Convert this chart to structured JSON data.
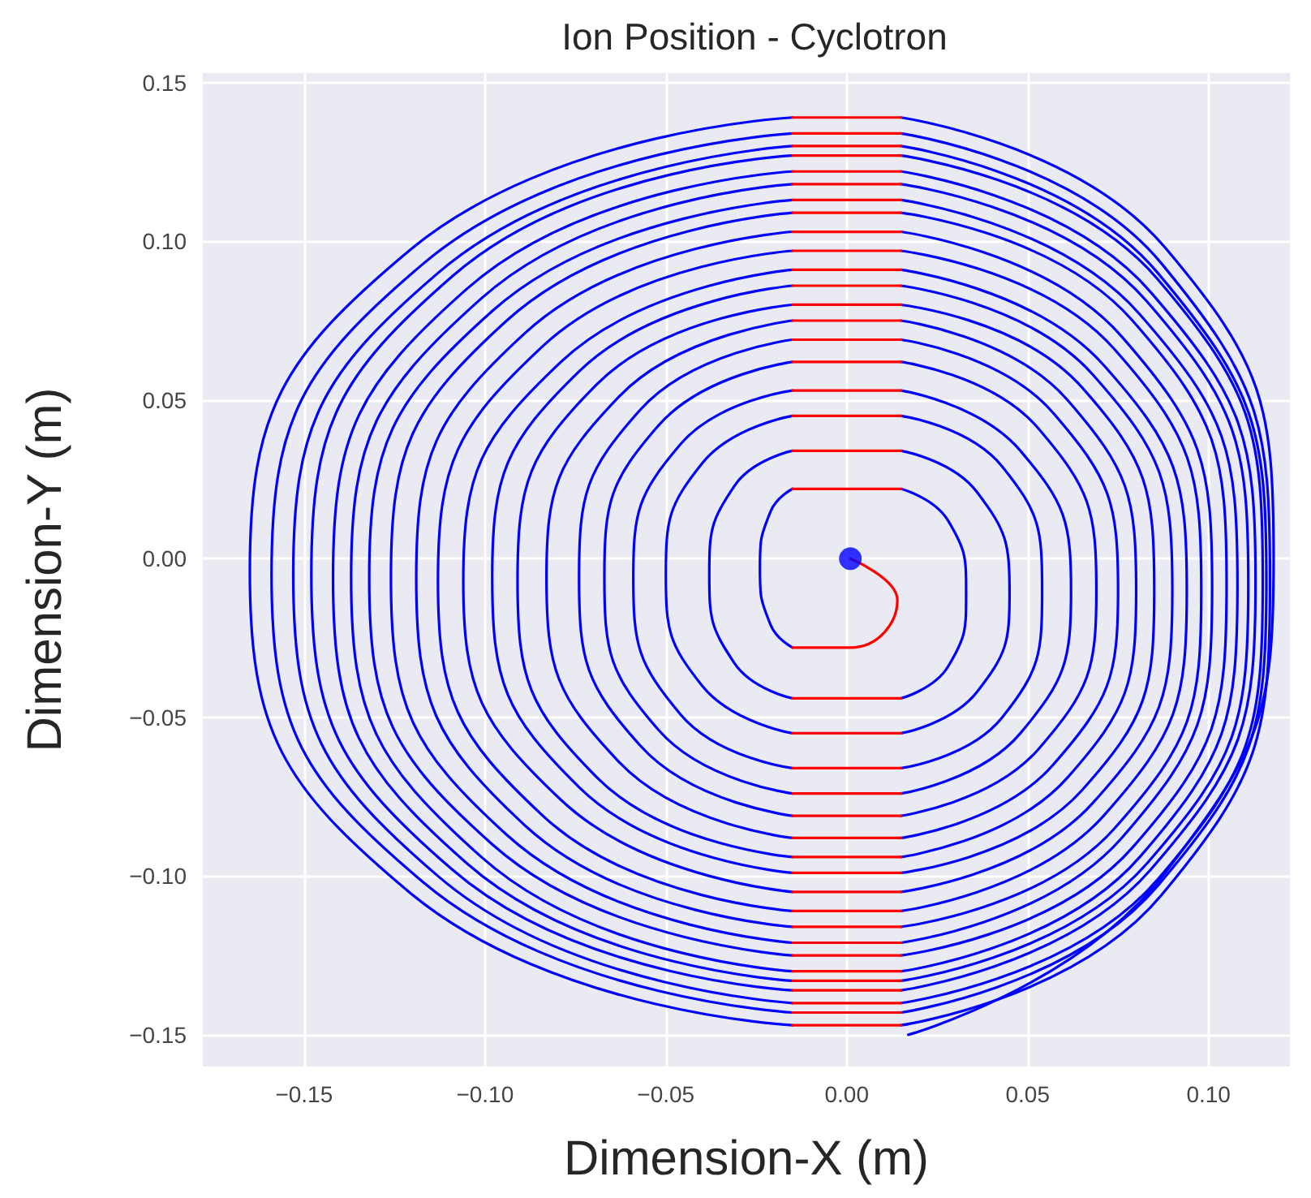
{
  "chart_data": {
    "type": "line",
    "title": "Ion Position - Cyclotron",
    "xlabel": "Dimension-X (m)",
    "ylabel": "Dimension-Y (m)",
    "xlim": [
      -0.178,
      0.1225
    ],
    "ylim": [
      -0.16,
      0.153
    ],
    "xticks": [
      {
        "value": -0.15,
        "label": "−0.15"
      },
      {
        "value": -0.1,
        "label": "−0.10"
      },
      {
        "value": -0.05,
        "label": "−0.05"
      },
      {
        "value": 0,
        "label": "0.00"
      },
      {
        "value": 0.05,
        "label": "0.05"
      },
      {
        "value": 0.1,
        "label": "0.10"
      }
    ],
    "yticks": [
      {
        "value": -0.15,
        "label": "−0.15"
      },
      {
        "value": -0.1,
        "label": "−0.10"
      },
      {
        "value": -0.05,
        "label": "−0.05"
      },
      {
        "value": 0,
        "label": "0.00"
      },
      {
        "value": 0.05,
        "label": "0.05"
      },
      {
        "value": 0.1,
        "label": "0.10"
      },
      {
        "value": 0.15,
        "label": "0.15"
      }
    ],
    "grid": true,
    "marker": "none",
    "series": [
      {
        "color": "#0000ff",
        "x": [
          -0.015,
          -0.021,
          -0.024,
          -0.021,
          -0.015
        ],
        "values": [
          -0.028,
          -0.021,
          -0.003,
          0.015,
          0.022
        ]
      },
      {
        "color": "#0000ff",
        "x": [
          0.015,
          0.028,
          0.033,
          0.028,
          0.015
        ],
        "values": [
          0.022,
          0.012,
          -0.011,
          -0.034,
          -0.044
        ]
      },
      {
        "color": "#0000ff",
        "x": [
          -0.015,
          -0.031,
          -0.038,
          -0.031,
          -0.015
        ],
        "values": [
          -0.044,
          -0.033,
          -0.005,
          0.023,
          0.034
        ]
      },
      {
        "color": "#0000ff",
        "x": [
          0.015,
          0.036,
          0.045,
          0.036,
          0.015
        ],
        "values": [
          0.034,
          0.021,
          -0.011,
          -0.042,
          -0.055
        ]
      },
      {
        "color": "#0000ff",
        "x": [
          -0.015,
          -0.04,
          -0.05,
          -0.04,
          -0.015
        ],
        "values": [
          -0.055,
          -0.04,
          -0.005,
          0.03,
          0.045
        ]
      },
      {
        "color": "#0000ff",
        "x": [
          0.015,
          0.043,
          0.054,
          0.043,
          0.015
        ],
        "values": [
          0.045,
          0.029,
          -0.01,
          -0.05,
          -0.066
        ]
      },
      {
        "color": "#0000ff",
        "x": [
          -0.015,
          -0.046,
          -0.059,
          -0.046,
          -0.015
        ],
        "values": [
          -0.066,
          -0.049,
          -0.006,
          0.036,
          0.053
        ]
      },
      {
        "color": "#0000ff",
        "x": [
          0.015,
          0.048,
          0.062,
          0.048,
          0.015
        ],
        "values": [
          0.053,
          0.034,
          -0.01,
          -0.055,
          -0.074
        ]
      },
      {
        "color": "#0000ff",
        "x": [
          -0.015,
          -0.052,
          -0.067,
          -0.052,
          -0.015
        ],
        "values": [
          -0.074,
          -0.054,
          -0.006,
          0.042,
          0.062
        ]
      },
      {
        "color": "#0000ff",
        "x": [
          0.015,
          0.053,
          0.069,
          0.053,
          0.015
        ],
        "values": [
          0.062,
          0.041,
          -0.01,
          -0.06,
          -0.081
        ]
      },
      {
        "color": "#0000ff",
        "x": [
          -0.015,
          -0.057,
          -0.074,
          -0.057,
          -0.015
        ],
        "values": [
          -0.081,
          -0.059,
          -0.006,
          0.047,
          0.069
        ]
      },
      {
        "color": "#0000ff",
        "x": [
          0.015,
          0.057,
          0.075,
          0.057,
          0.015
        ],
        "values": [
          0.069,
          0.046,
          -0.01,
          -0.065,
          -0.088
        ]
      },
      {
        "color": "#0000ff",
        "x": [
          -0.015,
          -0.063,
          -0.083,
          -0.063,
          -0.015
        ],
        "values": [
          -0.088,
          -0.064,
          -0.006,
          0.051,
          0.075
        ]
      },
      {
        "color": "#0000ff",
        "x": [
          0.015,
          0.061,
          0.08,
          0.061,
          0.015
        ],
        "values": [
          0.075,
          0.05,
          -0.01,
          -0.069,
          -0.094
        ]
      },
      {
        "color": "#0000ff",
        "x": [
          -0.015,
          -0.069,
          -0.091,
          -0.069,
          -0.015
        ],
        "values": [
          -0.094,
          -0.069,
          -0.007,
          0.055,
          0.08
        ]
      },
      {
        "color": "#0000ff",
        "x": [
          0.015,
          0.065,
          0.085,
          0.065,
          0.015
        ],
        "values": [
          0.08,
          0.054,
          -0.01,
          -0.073,
          -0.099
        ]
      },
      {
        "color": "#0000ff",
        "x": [
          -0.015,
          -0.074,
          -0.098,
          -0.074,
          -0.015
        ],
        "values": [
          -0.099,
          -0.072,
          -0.006,
          0.059,
          0.086
        ]
      },
      {
        "color": "#0000ff",
        "x": [
          0.015,
          0.068,
          0.09,
          0.068,
          0.015
        ],
        "values": [
          0.086,
          0.058,
          -0.01,
          -0.077,
          -0.105
        ]
      },
      {
        "color": "#0000ff",
        "x": [
          -0.015,
          -0.079,
          -0.106,
          -0.079,
          -0.015
        ],
        "values": [
          -0.105,
          -0.076,
          -0.007,
          0.062,
          0.091
        ]
      },
      {
        "color": "#0000ff",
        "x": [
          0.015,
          0.071,
          0.094,
          0.071,
          0.015
        ],
        "values": [
          0.091,
          0.061,
          -0.01,
          -0.081,
          -0.111
        ]
      },
      {
        "color": "#0000ff",
        "x": [
          -0.015,
          -0.084,
          -0.113,
          -0.084,
          -0.015
        ],
        "values": [
          -0.111,
          -0.081,
          -0.007,
          0.067,
          0.097
        ]
      },
      {
        "color": "#0000ff",
        "x": [
          0.015,
          0.074,
          0.098,
          0.074,
          0.015
        ],
        "values": [
          0.097,
          0.066,
          -0.01,
          -0.085,
          -0.116
        ]
      },
      {
        "color": "#0000ff",
        "x": [
          -0.015,
          -0.089,
          -0.119,
          -0.089,
          -0.015
        ],
        "values": [
          -0.116,
          -0.084,
          -0.006,
          0.071,
          0.103
        ]
      },
      {
        "color": "#0000ff",
        "x": [
          0.015,
          0.076,
          0.101,
          0.076,
          0.015
        ],
        "values": [
          0.103,
          0.07,
          -0.009,
          -0.088,
          -0.121
        ]
      },
      {
        "color": "#0000ff",
        "x": [
          -0.015,
          -0.094,
          -0.126,
          -0.094,
          -0.015
        ],
        "values": [
          -0.121,
          -0.087,
          -0.006,
          0.075,
          0.109
        ]
      },
      {
        "color": "#0000ff",
        "x": [
          0.015,
          0.079,
          0.105,
          0.079,
          0.015
        ],
        "values": [
          0.109,
          0.075,
          -0.008,
          -0.091,
          -0.125
        ]
      },
      {
        "color": "#0000ff",
        "x": [
          -0.015,
          -0.098,
          -0.132,
          -0.098,
          -0.015
        ],
        "values": [
          -0.125,
          -0.09,
          -0.006,
          0.078,
          0.113
        ]
      },
      {
        "color": "#0000ff",
        "x": [
          0.015,
          0.081,
          0.108,
          0.081,
          0.015
        ],
        "values": [
          0.113,
          0.077,
          -0.008,
          -0.094,
          -0.13
        ]
      },
      {
        "color": "#0000ff",
        "x": [
          -0.015,
          -0.101,
          -0.137,
          -0.101,
          -0.015
        ],
        "values": [
          -0.13,
          -0.094,
          -0.006,
          0.082,
          0.118
        ]
      },
      {
        "color": "#0000ff",
        "x": [
          0.015,
          0.083,
          0.111,
          0.083,
          0.015
        ],
        "values": [
          0.118,
          0.081,
          -0.008,
          -0.096,
          -0.133
        ]
      },
      {
        "color": "#0000ff",
        "x": [
          -0.015,
          -0.105,
          -0.142,
          -0.105,
          -0.015
        ],
        "values": [
          -0.133,
          -0.096,
          -0.006,
          0.085,
          0.122
        ]
      },
      {
        "color": "#0000ff",
        "x": [
          0.015,
          0.084,
          0.113,
          0.084,
          0.015
        ],
        "values": [
          0.122,
          0.084,
          -0.007,
          -0.098,
          -0.136
        ]
      },
      {
        "color": "#0000ff",
        "x": [
          -0.015,
          -0.109,
          -0.148,
          -0.109,
          -0.015
        ],
        "values": [
          -0.136,
          -0.098,
          -0.005,
          0.089,
          0.127
        ]
      },
      {
        "color": "#0000ff",
        "x": [
          0.015,
          0.086,
          0.115,
          0.086,
          0.015
        ],
        "values": [
          0.127,
          0.088,
          -0.007,
          -0.101,
          -0.14
        ]
      },
      {
        "color": "#0000ff",
        "x": [
          -0.015,
          -0.113,
          -0.153,
          -0.113,
          -0.015
        ],
        "values": [
          -0.14,
          -0.1,
          -0.005,
          0.09,
          0.13
        ]
      },
      {
        "color": "#0000ff",
        "x": [
          0.015,
          0.086,
          0.116,
          0.086,
          0.015
        ],
        "values": [
          0.13,
          0.09,
          -0.007,
          -0.103,
          -0.143
        ]
      },
      {
        "color": "#0000ff",
        "x": [
          -0.015,
          -0.117,
          -0.159,
          -0.117,
          -0.015
        ],
        "values": [
          -0.143,
          -0.102,
          -0.005,
          0.093,
          0.134
        ]
      },
      {
        "color": "#0000ff",
        "x": [
          0.015,
          0.087,
          0.117,
          0.087,
          0.015
        ],
        "values": [
          0.134,
          0.093,
          -0.007,
          -0.106,
          -0.147
        ]
      },
      {
        "color": "#0000ff",
        "x": [
          -0.015,
          -0.121,
          -0.165,
          -0.121,
          -0.015
        ],
        "values": [
          -0.147,
          -0.105,
          -0.004,
          0.097,
          0.139
        ]
      },
      {
        "color": "#0000ff",
        "x": [
          0.015,
          0.088,
          0.118,
          0.088,
          0.017
        ],
        "values": [
          0.139,
          0.098,
          0.0,
          -0.099,
          -0.15
        ]
      },
      {
        "color": "#ff0000",
        "x": [
          0.001,
          0.014,
          0.001,
          -0.015
        ],
        "values": [
          0,
          -0.013,
          -0.028,
          -0.028
        ]
      },
      {
        "color": "#ff0000",
        "x": [
          -0.015,
          0.015
        ],
        "values": [
          0.022,
          0.022
        ]
      },
      {
        "color": "#ff0000",
        "x": [
          0.015,
          -0.015
        ],
        "values": [
          -0.044,
          -0.044
        ]
      },
      {
        "color": "#ff0000",
        "x": [
          -0.015,
          0.015
        ],
        "values": [
          0.034,
          0.034
        ]
      },
      {
        "color": "#ff0000",
        "x": [
          0.015,
          -0.015
        ],
        "values": [
          -0.055,
          -0.055
        ]
      },
      {
        "color": "#ff0000",
        "x": [
          -0.015,
          0.015
        ],
        "values": [
          0.045,
          0.045
        ]
      },
      {
        "color": "#ff0000",
        "x": [
          0.015,
          -0.015
        ],
        "values": [
          -0.066,
          -0.066
        ]
      },
      {
        "color": "#ff0000",
        "x": [
          -0.015,
          0.015
        ],
        "values": [
          0.053,
          0.053
        ]
      },
      {
        "color": "#ff0000",
        "x": [
          0.015,
          -0.015
        ],
        "values": [
          -0.074,
          -0.074
        ]
      },
      {
        "color": "#ff0000",
        "x": [
          -0.015,
          0.015
        ],
        "values": [
          0.062,
          0.062
        ]
      },
      {
        "color": "#ff0000",
        "x": [
          0.015,
          -0.015
        ],
        "values": [
          -0.081,
          -0.081
        ]
      },
      {
        "color": "#ff0000",
        "x": [
          -0.015,
          0.015
        ],
        "values": [
          0.069,
          0.069
        ]
      },
      {
        "color": "#ff0000",
        "x": [
          0.015,
          -0.015
        ],
        "values": [
          -0.088,
          -0.088
        ]
      },
      {
        "color": "#ff0000",
        "x": [
          -0.015,
          0.015
        ],
        "values": [
          0.075,
          0.075
        ]
      },
      {
        "color": "#ff0000",
        "x": [
          0.015,
          -0.015
        ],
        "values": [
          -0.094,
          -0.094
        ]
      },
      {
        "color": "#ff0000",
        "x": [
          -0.015,
          0.015
        ],
        "values": [
          0.08,
          0.08
        ]
      },
      {
        "color": "#ff0000",
        "x": [
          0.015,
          -0.015
        ],
        "values": [
          -0.099,
          -0.099
        ]
      },
      {
        "color": "#ff0000",
        "x": [
          -0.015,
          0.015
        ],
        "values": [
          0.086,
          0.086
        ]
      },
      {
        "color": "#ff0000",
        "x": [
          0.015,
          -0.015
        ],
        "values": [
          -0.105,
          -0.105
        ]
      },
      {
        "color": "#ff0000",
        "x": [
          -0.015,
          0.015
        ],
        "values": [
          0.091,
          0.091
        ]
      },
      {
        "color": "#ff0000",
        "x": [
          0.015,
          -0.015
        ],
        "values": [
          -0.111,
          -0.111
        ]
      },
      {
        "color": "#ff0000",
        "x": [
          -0.015,
          0.015
        ],
        "values": [
          0.097,
          0.097
        ]
      },
      {
        "color": "#ff0000",
        "x": [
          0.015,
          -0.015
        ],
        "values": [
          -0.116,
          -0.116
        ]
      },
      {
        "color": "#ff0000",
        "x": [
          -0.015,
          0.015
        ],
        "values": [
          0.103,
          0.103
        ]
      },
      {
        "color": "#ff0000",
        "x": [
          0.015,
          -0.015
        ],
        "values": [
          -0.121,
          -0.121
        ]
      },
      {
        "color": "#ff0000",
        "x": [
          -0.015,
          0.015
        ],
        "values": [
          0.109,
          0.109
        ]
      },
      {
        "color": "#ff0000",
        "x": [
          0.015,
          -0.015
        ],
        "values": [
          -0.125,
          -0.125
        ]
      },
      {
        "color": "#ff0000",
        "x": [
          -0.015,
          0.015
        ],
        "values": [
          0.113,
          0.113
        ]
      },
      {
        "color": "#ff0000",
        "x": [
          0.015,
          -0.015
        ],
        "values": [
          -0.13,
          -0.13
        ]
      },
      {
        "color": "#ff0000",
        "x": [
          -0.015,
          0.015
        ],
        "values": [
          0.118,
          0.118
        ]
      },
      {
        "color": "#ff0000",
        "x": [
          0.015,
          -0.015
        ],
        "values": [
          -0.133,
          -0.133
        ]
      },
      {
        "color": "#ff0000",
        "x": [
          -0.015,
          0.015
        ],
        "values": [
          0.122,
          0.122
        ]
      },
      {
        "color": "#ff0000",
        "x": [
          0.015,
          -0.015
        ],
        "values": [
          -0.136,
          -0.136
        ]
      },
      {
        "color": "#ff0000",
        "x": [
          -0.015,
          0.015
        ],
        "values": [
          0.127,
          0.127
        ]
      },
      {
        "color": "#ff0000",
        "x": [
          0.015,
          -0.015
        ],
        "values": [
          -0.14,
          -0.14
        ]
      },
      {
        "color": "#ff0000",
        "x": [
          -0.015,
          0.015
        ],
        "values": [
          0.13,
          0.13
        ]
      },
      {
        "color": "#ff0000",
        "x": [
          0.015,
          -0.015
        ],
        "values": [
          -0.143,
          -0.143
        ]
      },
      {
        "color": "#ff0000",
        "x": [
          -0.015,
          0.015
        ],
        "values": [
          0.134,
          0.134
        ]
      },
      {
        "color": "#ff0000",
        "x": [
          0.015,
          -0.015
        ],
        "values": [
          -0.147,
          -0.147
        ]
      },
      {
        "color": "#ff0000",
        "x": [
          -0.015,
          0.015
        ],
        "values": [
          0.139,
          0.139
        ]
      },
      {
        "type": "scatter",
        "color": "#0000ff",
        "marker": "circle",
        "x": [
          0.001
        ],
        "values": [
          0
        ]
      }
    ]
  }
}
